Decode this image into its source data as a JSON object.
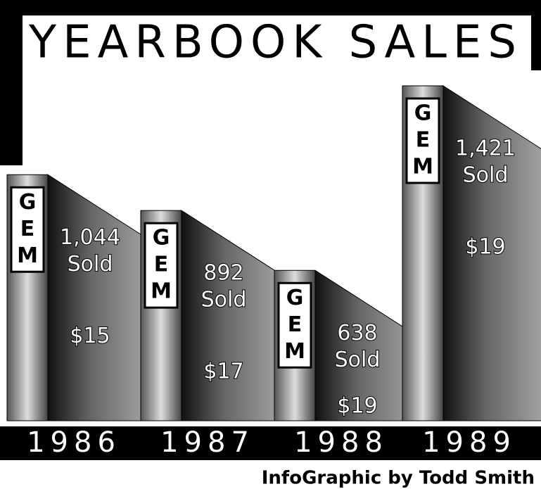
{
  "chart_data": {
    "type": "pictogram-bar",
    "title": "YEARBOOK SALES",
    "categories": [
      "1986",
      "1987",
      "1988",
      "1989"
    ],
    "values": [
      1044,
      892,
      638,
      1421
    ],
    "value_labels": [
      "1,044",
      "892",
      "638",
      "1,421"
    ],
    "unit_label": "Sold",
    "price_labels": [
      "$15",
      "$17",
      "$19",
      "$19"
    ],
    "spine_letters": [
      "G",
      "E",
      "M"
    ],
    "credit": "InfoGraphic by Todd Smith"
  }
}
